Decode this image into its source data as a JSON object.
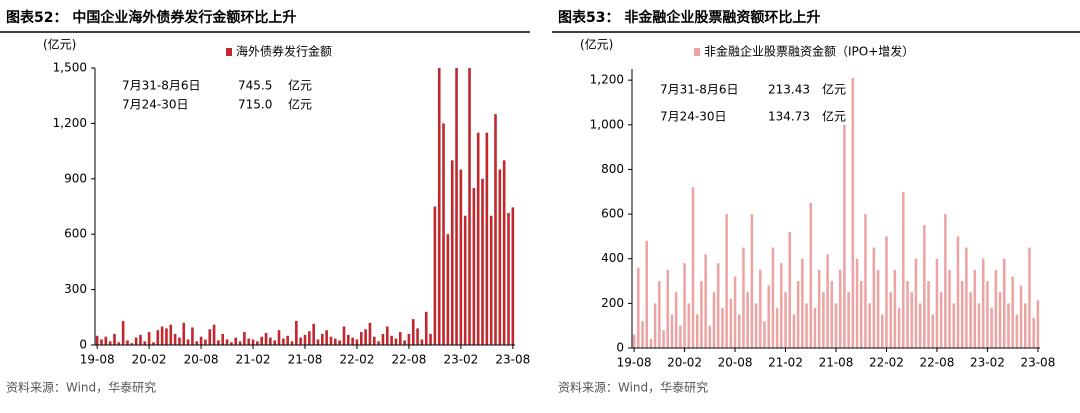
{
  "chart_data": [
    {
      "type": "bar",
      "title": "图表52：  中国企业海外债券发行金额环比上升",
      "y_label": "(亿元)",
      "source": "资料来源：Wind，华泰研究",
      "annotations": [
        {
          "label": "7月31-8月6日",
          "value": "745.5",
          "unit": "亿元"
        },
        {
          "label": "7月24-30日",
          "value": "715.0",
          "unit": "亿元"
        }
      ],
      "categories": [
        "19-08",
        null,
        null,
        null,
        null,
        null,
        null,
        null,
        null,
        null,
        null,
        null,
        "20-02",
        null,
        null,
        null,
        null,
        null,
        null,
        null,
        null,
        null,
        null,
        null,
        "20-08",
        null,
        null,
        null,
        null,
        null,
        null,
        null,
        null,
        null,
        null,
        null,
        "21-02",
        null,
        null,
        null,
        null,
        null,
        null,
        null,
        null,
        null,
        null,
        null,
        "21-08",
        null,
        null,
        null,
        null,
        null,
        null,
        null,
        null,
        null,
        null,
        null,
        "22-02",
        null,
        null,
        null,
        null,
        null,
        null,
        null,
        null,
        null,
        null,
        null,
        "22-08",
        null,
        null,
        null,
        null,
        null,
        null,
        null,
        null,
        null,
        null,
        null,
        "23-02",
        null,
        null,
        null,
        null,
        null,
        null,
        null,
        null,
        null,
        null,
        null,
        "23-08"
      ],
      "series": [
        {
          "name": "海外债券发行金额",
          "color": "#c0282d",
          "values": [
            50,
            30,
            45,
            20,
            60,
            15,
            130,
            25,
            10,
            40,
            55,
            20,
            70,
            15,
            80,
            100,
            90,
            110,
            60,
            40,
            120,
            30,
            95,
            20,
            45,
            30,
            85,
            110,
            25,
            60,
            30,
            15,
            40,
            20,
            70,
            35,
            30,
            20,
            45,
            65,
            40,
            25,
            80,
            35,
            50,
            20,
            130,
            40,
            55,
            75,
            115,
            30,
            60,
            80,
            45,
            35,
            25,
            100,
            55,
            40,
            30,
            70,
            85,
            120,
            45,
            20,
            60,
            100,
            50,
            35,
            70,
            25,
            60,
            140,
            90,
            30,
            180,
            60,
            750,
            1500,
            1200,
            600,
            1000,
            1500,
            950,
            700,
            1500,
            850,
            1150,
            900,
            1150,
            700,
            1250,
            950,
            1000,
            715,
            745.5
          ]
        }
      ],
      "ylim": [
        0,
        1500
      ],
      "yticks": [
        0,
        300,
        600,
        900,
        {
          "value": 1200,
          "label": "1,200"
        },
        {
          "value": 1500,
          "label": "1,500"
        }
      ]
    },
    {
      "type": "bar",
      "title": "图表53：  非金融企业股票融资额环比上升",
      "y_label": "(亿元)",
      "source": "资料来源：Wind，华泰研究",
      "annotations": [
        {
          "label": "7月31-8月6日",
          "value": "213.43",
          "unit": "亿元"
        },
        {
          "label": "7月24-30日",
          "value": "134.73",
          "unit": "亿元"
        }
      ],
      "categories": [
        "19-08",
        null,
        null,
        null,
        null,
        null,
        null,
        null,
        null,
        null,
        null,
        null,
        "20-02",
        null,
        null,
        null,
        null,
        null,
        null,
        null,
        null,
        null,
        null,
        null,
        "20-08",
        null,
        null,
        null,
        null,
        null,
        null,
        null,
        null,
        null,
        null,
        null,
        "21-02",
        null,
        null,
        null,
        null,
        null,
        null,
        null,
        null,
        null,
        null,
        null,
        "21-08",
        null,
        null,
        null,
        null,
        null,
        null,
        null,
        null,
        null,
        null,
        null,
        "22-02",
        null,
        null,
        null,
        null,
        null,
        null,
        null,
        null,
        null,
        null,
        null,
        "22-08",
        null,
        null,
        null,
        null,
        null,
        null,
        null,
        null,
        null,
        null,
        null,
        "23-02",
        null,
        null,
        null,
        null,
        null,
        null,
        null,
        null,
        null,
        null,
        null,
        "23-08"
      ],
      "series": [
        {
          "name": "非金融企业股票融资金额（IPO+增发）",
          "color": "#eea3a3",
          "values": [
            60,
            360,
            120,
            480,
            40,
            200,
            300,
            80,
            350,
            150,
            250,
            100,
            380,
            200,
            720,
            150,
            300,
            420,
            100,
            250,
            380,
            180,
            600,
            220,
            320,
            150,
            450,
            250,
            600,
            200,
            350,
            120,
            280,
            450,
            180,
            380,
            250,
            520,
            150,
            300,
            400,
            200,
            650,
            180,
            350,
            250,
            420,
            300,
            200,
            350,
            1000,
            250,
            1210,
            400,
            300,
            600,
            200,
            450,
            350,
            150,
            500,
            250,
            350,
            180,
            700,
            300,
            250,
            400,
            200,
            550,
            300,
            150,
            400,
            250,
            600,
            350,
            200,
            500,
            300,
            450,
            250,
            350,
            200,
            400,
            300,
            180,
            350,
            250,
            400,
            200,
            320,
            150,
            280,
            200,
            450,
            134.73,
            213.43
          ]
        }
      ],
      "ylim": [
        0,
        1250
      ],
      "yticks": [
        0,
        200,
        400,
        600,
        800,
        {
          "value": 1000,
          "label": "1,000"
        },
        {
          "value": 1200,
          "label": "1,200"
        }
      ]
    }
  ]
}
